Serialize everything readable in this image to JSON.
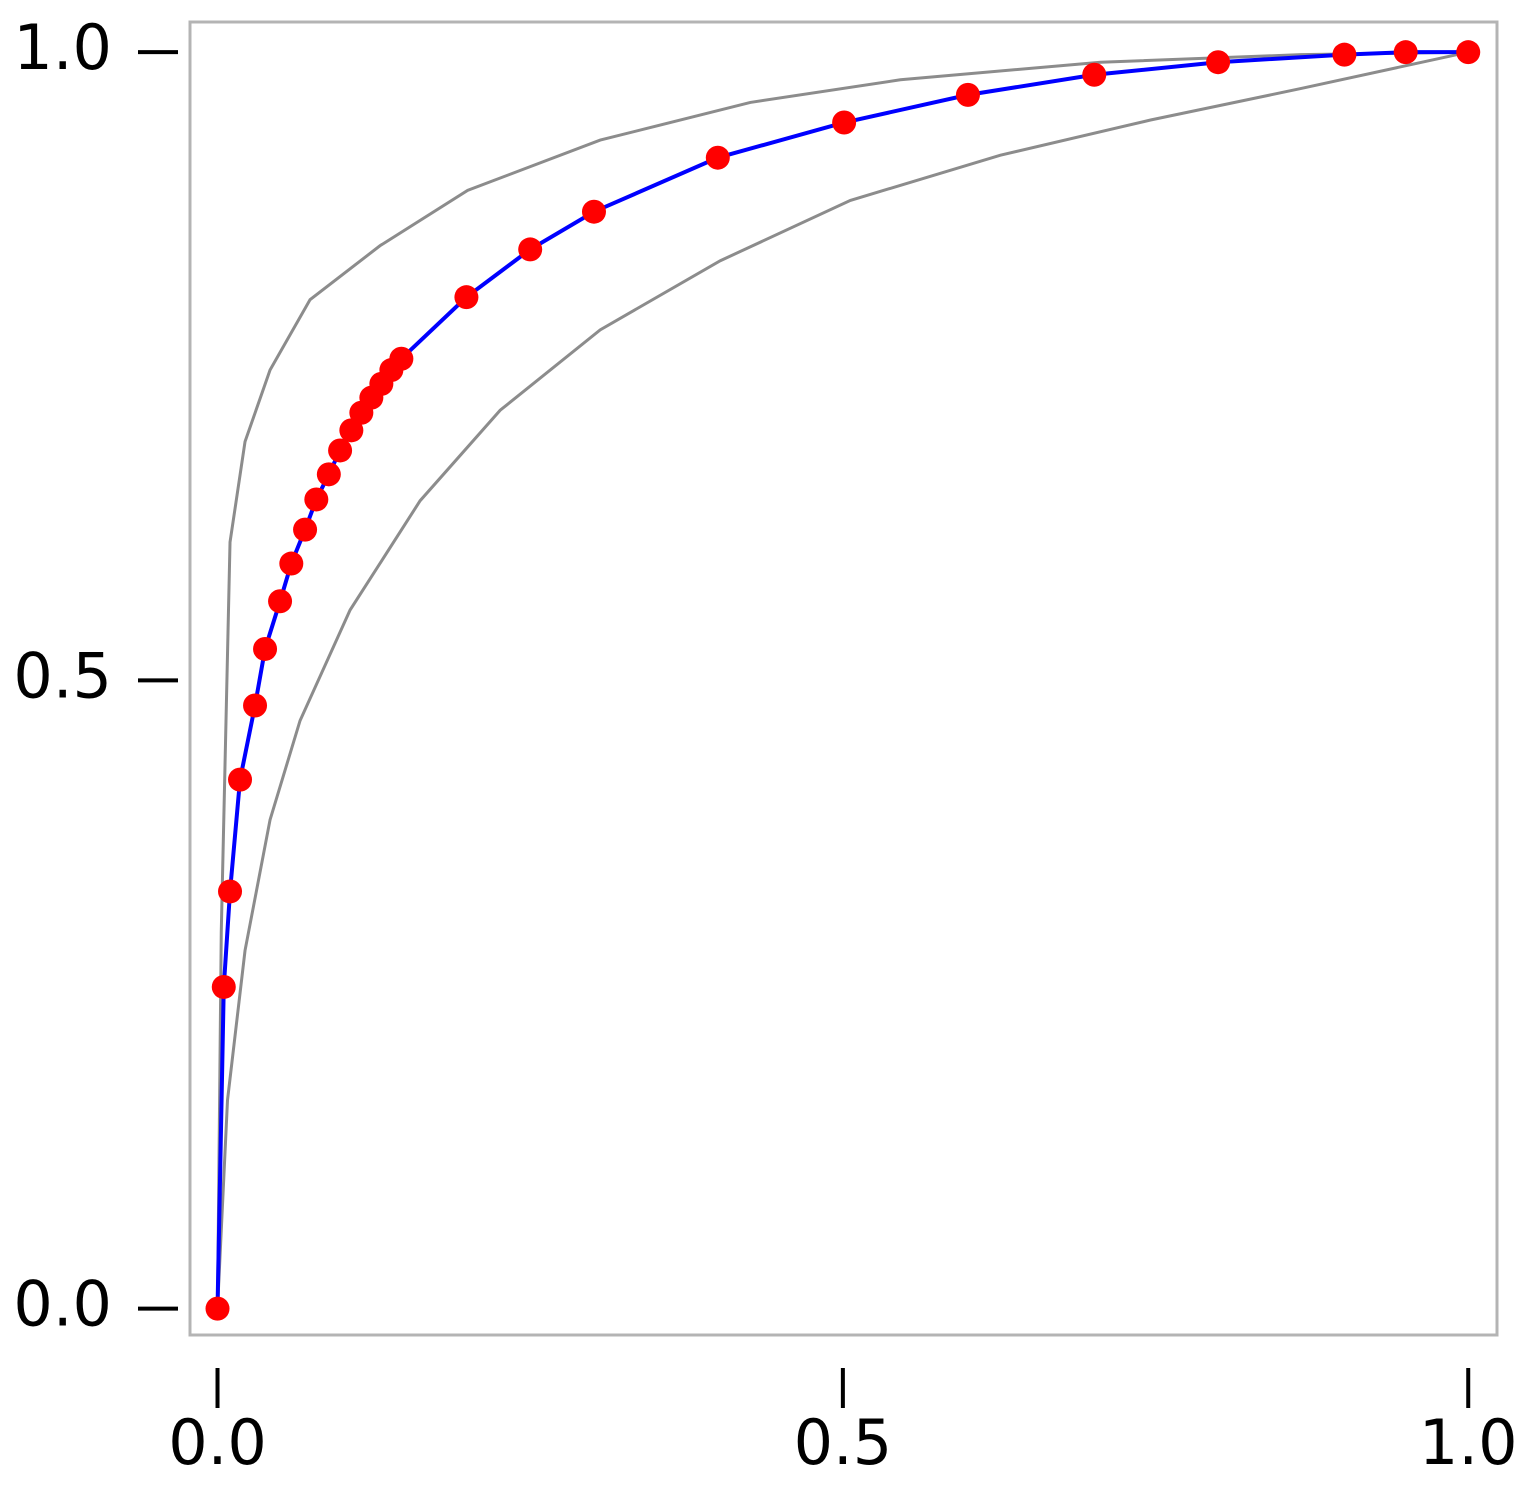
{
  "chart_data": {
    "type": "line",
    "xlim": [
      -0.022,
      1.023
    ],
    "ylim": [
      -0.021,
      1.024
    ],
    "xticks": [
      {
        "value": 0,
        "label": "0.0"
      },
      {
        "value": 0.5,
        "label": "0.5"
      },
      {
        "value": 1,
        "label": "1.0"
      }
    ],
    "yticks": [
      {
        "value": 0,
        "label": "0.0"
      },
      {
        "value": 0.5,
        "label": "0.5"
      },
      {
        "value": 1,
        "label": "1.0"
      }
    ],
    "series": [
      {
        "color": "#8c8c8c",
        "markers": false,
        "x": [
          0,
          0.003,
          0.01,
          0.022,
          0.042,
          0.074,
          0.13,
          0.2,
          0.306,
          0.426,
          0.546,
          0.706,
          0.866,
          1
        ],
        "values": [
          0,
          0.3,
          0.61,
          0.69,
          0.747,
          0.803,
          0.846,
          0.89,
          0.93,
          0.96,
          0.978,
          0.992,
          0.998,
          1
        ]
      },
      {
        "color": "#8c8c8c",
        "markers": false,
        "x": [
          0,
          0.008,
          0.022,
          0.042,
          0.066,
          0.106,
          0.162,
          0.226,
          0.306,
          0.402,
          0.506,
          0.626,
          0.746,
          0.866,
          1
        ],
        "values": [
          0,
          0.166,
          0.285,
          0.389,
          0.468,
          0.556,
          0.643,
          0.715,
          0.779,
          0.834,
          0.882,
          0.918,
          0.946,
          0.971,
          1
        ]
      },
      {
        "color": "#0000ff",
        "markers": true,
        "marker_color": "#ff0000",
        "x": [
          0,
          0.005,
          0.01,
          0.018,
          0.03,
          0.038,
          0.05,
          0.059,
          0.07,
          0.079,
          0.089,
          0.098,
          0.107,
          0.115,
          0.123,
          0.131,
          0.139,
          0.147,
          0.199,
          0.25,
          0.301,
          0.4,
          0.501,
          0.6,
          0.701,
          0.8,
          0.901,
          0.95,
          1
        ],
        "values": [
          0,
          0.256,
          0.332,
          0.421,
          0.48,
          0.525,
          0.563,
          0.593,
          0.62,
          0.644,
          0.664,
          0.683,
          0.699,
          0.713,
          0.725,
          0.736,
          0.747,
          0.756,
          0.805,
          0.843,
          0.873,
          0.916,
          0.944,
          0.966,
          0.982,
          0.992,
          0.998,
          1,
          1
        ]
      }
    ]
  }
}
